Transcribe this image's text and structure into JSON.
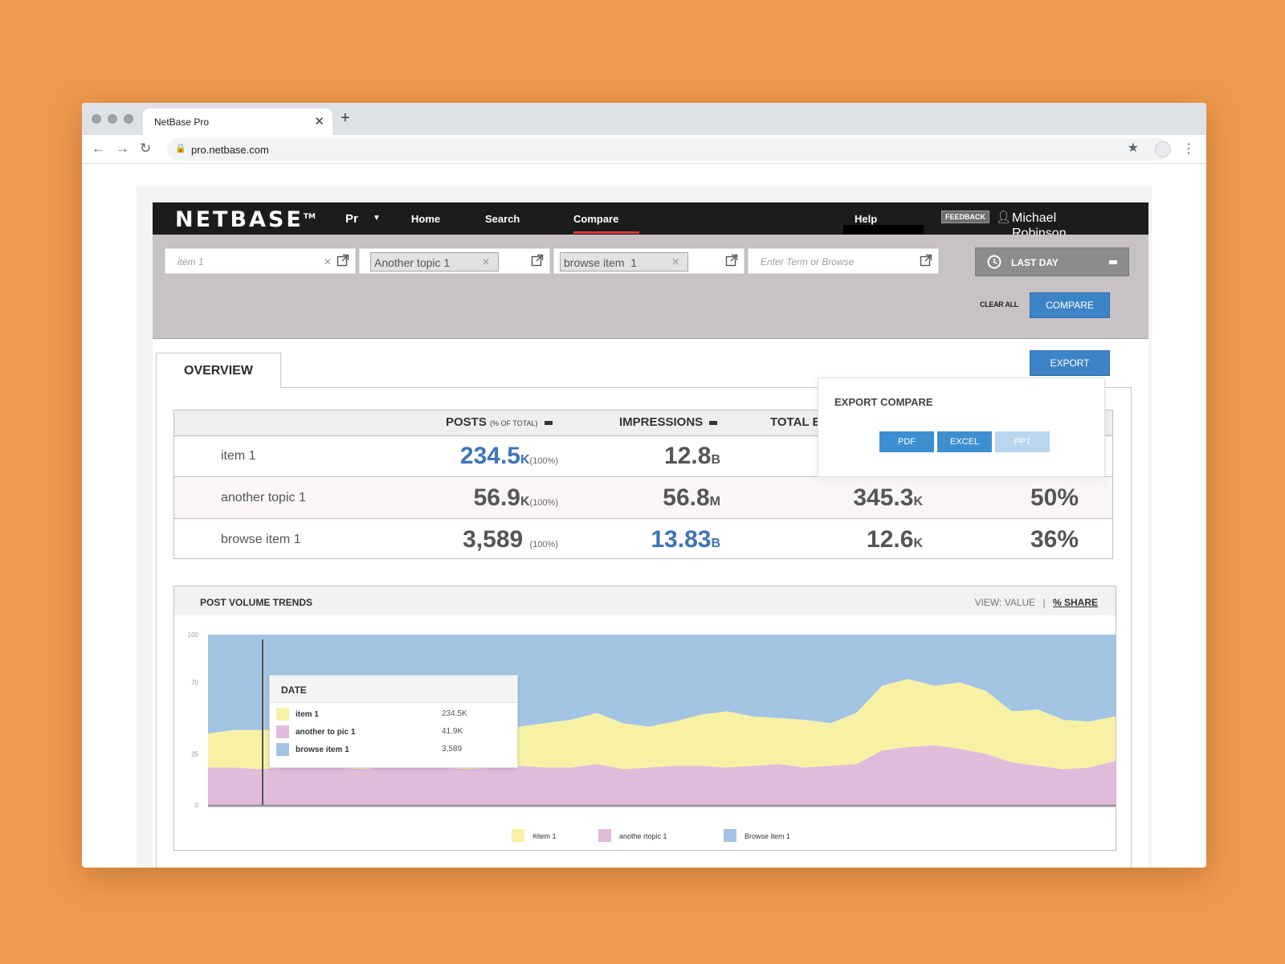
{
  "browser": {
    "tab_title": "NetBase Pro",
    "url": "pro.netbase.com"
  },
  "app": {
    "logo": "NETBASE",
    "logo_tm": "TM",
    "product": "Pr",
    "nav": [
      "Home",
      "Search",
      "Compare"
    ],
    "active_nav": "Compare",
    "help": "Help",
    "feedback": "FEEDBACK",
    "user": "Michael Robinson"
  },
  "filters": {
    "topics": [
      {
        "type": "input",
        "value": "item 1"
      },
      {
        "type": "chip",
        "value": "Another topic 1"
      },
      {
        "type": "chip",
        "value": "browse item  1"
      },
      {
        "type": "input",
        "placeholder": "Enter Term or Browse"
      }
    ],
    "time_range": "LAST DAY",
    "clear_all": "CLEAR ALL",
    "compare": "COMPARE"
  },
  "tabs": {
    "overview": "OVERVIEW"
  },
  "export": {
    "button": "EXPORT",
    "popup_title": "EXPORT COMPARE",
    "options": [
      "PDF",
      "EXCEL",
      "PPT"
    ]
  },
  "table": {
    "headers": {
      "posts": "POSTS",
      "posts_sub": "(% OF TOTAL)",
      "impressions": "IMPRESSIONS",
      "total": "TOTAL E"
    },
    "rows": [
      {
        "name": "item 1",
        "posts": "234.5",
        "posts_unit": "K",
        "posts_pct": "(100%)",
        "impressions": "12.8",
        "impressions_unit": "B",
        "total": "",
        "total_unit": "",
        "share": ""
      },
      {
        "name": "another topic 1",
        "posts": "56.9",
        "posts_unit": "K",
        "posts_pct": "(100%)",
        "impressions": "56.8",
        "impressions_unit": "M",
        "total": "345.3",
        "total_unit": "K",
        "share": "50%"
      },
      {
        "name": "browse item 1",
        "posts": "3,589",
        "posts_unit": "",
        "posts_pct": "(100%)",
        "impressions": "13.83",
        "impressions_unit": "B",
        "total": "12.6",
        "total_unit": "K",
        "share": "36%"
      }
    ]
  },
  "trends": {
    "title": "POST VOLUME TRENDS",
    "view_label": "VIEW:",
    "view_value": "VALUE",
    "view_sep": "|",
    "view_share": "% SHARE",
    "tooltip": {
      "title": "DATE",
      "rows": [
        {
          "name": "item 1",
          "value": "234.5K"
        },
        {
          "name": "another to pic 1",
          "value": "41.9K"
        },
        {
          "name": "browse item 1",
          "value": "3,589"
        }
      ]
    },
    "legend": [
      "#item 1",
      "anothe rtopic 1",
      "Browse item 1"
    ]
  },
  "colors": {
    "item1": "#f7f1a6",
    "topic1": "#e0bcda",
    "browse": "#a3c4e3",
    "accent": "#3d84c6"
  },
  "chart_data": {
    "type": "area",
    "title": "POST VOLUME TRENDS",
    "ytick_labels": [
      "100",
      "70",
      "25",
      "0"
    ],
    "series": [
      {
        "name": "#item 1",
        "values": [
          20,
          22,
          23,
          22,
          24,
          23,
          26,
          25,
          24,
          27,
          26,
          25,
          23,
          26,
          28,
          30,
          27,
          24,
          26,
          30,
          33,
          29,
          27,
          28,
          25,
          30,
          38,
          40,
          35,
          39,
          37,
          30,
          33,
          29,
          27,
          26
        ]
      },
      {
        "name": "anothe rtopic 1",
        "values": [
          22,
          22,
          21,
          22,
          23,
          22,
          21,
          23,
          24,
          22,
          21,
          22,
          23,
          22,
          22,
          24,
          21,
          22,
          23,
          23,
          22,
          23,
          24,
          22,
          23,
          24,
          32,
          34,
          35,
          33,
          30,
          25,
          23,
          21,
          22,
          26
        ]
      },
      {
        "name": "Browse item 1",
        "values": [
          58,
          56,
          56,
          56,
          53,
          55,
          53,
          52,
          52,
          51,
          53,
          53,
          54,
          52,
          50,
          46,
          52,
          54,
          51,
          47,
          45,
          48,
          49,
          50,
          52,
          46,
          30,
          26,
          30,
          28,
          33,
          45,
          44,
          50,
          51,
          48
        ]
      }
    ],
    "ylim": [
      0,
      100
    ]
  }
}
